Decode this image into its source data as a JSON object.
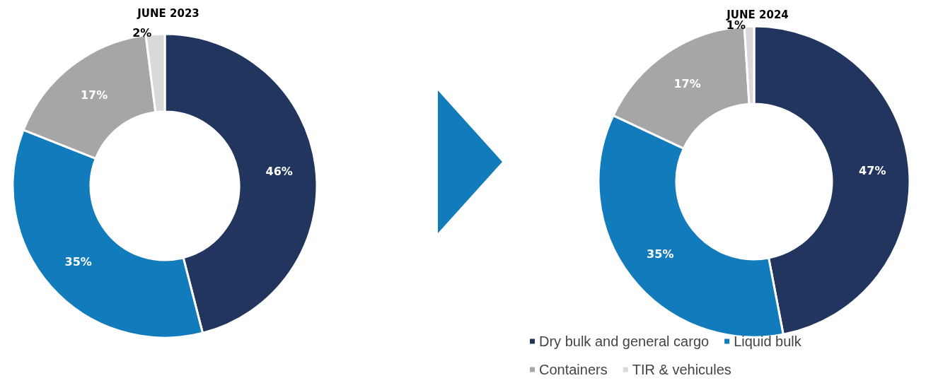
{
  "chart_data": [
    {
      "type": "donut",
      "title": "JUNE 2023",
      "categories": [
        null,
        null,
        null,
        null
      ],
      "values": [
        46,
        35,
        17,
        2
      ],
      "value_labels": [
        "46%",
        "35%",
        "17%",
        "2%"
      ],
      "colors": [
        "#22355f",
        "#127bbb",
        "#a6a6a6",
        "#d9d9d9"
      ],
      "legend": false
    },
    {
      "type": "donut",
      "title": "JUNE 2024",
      "categories": [
        "Dry bulk and general cargo",
        "Liquid bulk",
        "Containers",
        "TIR & vehicules"
      ],
      "values": [
        47,
        35,
        17,
        1
      ],
      "value_labels": [
        "47%",
        "35%",
        "17%",
        "1%"
      ],
      "colors": [
        "#22355f",
        "#127bbb",
        "#a6a6a6",
        "#d9d9d9"
      ],
      "legend": "bottom"
    }
  ]
}
